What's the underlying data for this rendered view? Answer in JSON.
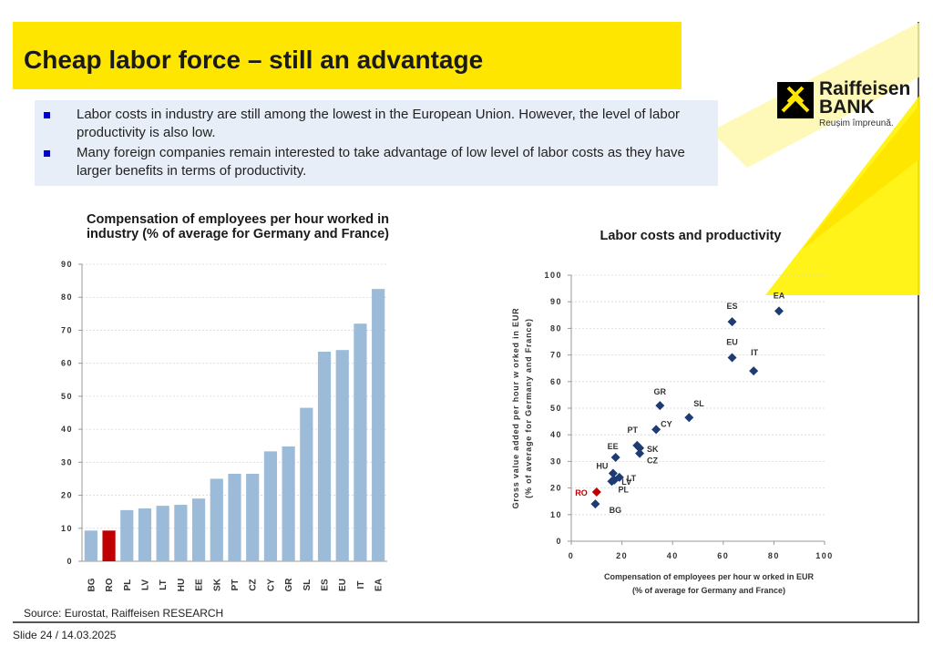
{
  "slide": {
    "title": "Cheap labor force – still an advantage",
    "bullets": [
      "Labor costs in industry are still among the lowest in the European Union. However, the level of labor productivity is also low.",
      "Many foreign companies remain interested to take advantage of low level of labor costs as they have larger benefits in terms of productivity."
    ],
    "source": "Source:  Eurostat, Raiffeisen RESEARCH",
    "slide_number": "Slide 24 / 14.03.2025",
    "logo": {
      "brand": "Raiffeisen BANK",
      "word1": "Raiffeisen",
      "word2": "BANK",
      "tagline": "Reușim împreună."
    },
    "colors": {
      "accent_yellow": "#ffe600",
      "bar_blue": "#9bbbd9",
      "bar_highlight": "#c00000",
      "diamond": "#1f3b73",
      "highlight_label": "#c00000"
    }
  },
  "chart_data": [
    {
      "type": "bar",
      "title": "Compensation of employees per hour worked in industry (% of average for Germany and France)",
      "categories": [
        "BG",
        "RO",
        "PL",
        "LV",
        "LT",
        "HU",
        "EE",
        "SK",
        "PT",
        "CZ",
        "CY",
        "GR",
        "SL",
        "ES",
        "EU",
        "IT",
        "EA"
      ],
      "values": [
        9.3,
        9.3,
        15.5,
        16,
        16.8,
        17.1,
        19,
        25,
        26.5,
        26.5,
        33.3,
        34.8,
        46.5,
        63.5,
        64,
        72,
        82.5
      ],
      "highlight": "RO",
      "ylim": [
        0,
        90
      ],
      "yticks": [
        0,
        10,
        20,
        30,
        40,
        50,
        60,
        70,
        80,
        90
      ],
      "grid": true
    },
    {
      "type": "scatter",
      "title": "Labor costs and productivity",
      "xlabel": "Compensation of employees per hour w orked in EUR (% of average for Germany and France)",
      "xlabel_lines": [
        "Compensation of employees per hour w orked in EUR",
        "(% of average for Germany and France)"
      ],
      "ylabel": "Gross value added per hour w orked in EUR (% of average for Germany and France)",
      "ylabel_lines": [
        "Gross value added per hour w orked in EUR",
        "(% of average for Germany and France)"
      ],
      "xlim": [
        0,
        100
      ],
      "ylim": [
        0,
        100
      ],
      "xticks": [
        0,
        20,
        40,
        60,
        80,
        100
      ],
      "yticks": [
        0,
        10,
        20,
        30,
        40,
        50,
        60,
        70,
        80,
        90,
        100
      ],
      "grid": true,
      "points": [
        {
          "label": "BG",
          "x": 9.5,
          "y": 14,
          "highlight": false
        },
        {
          "label": "RO",
          "x": 10,
          "y": 18.5,
          "highlight": true
        },
        {
          "label": "PL",
          "x": 16,
          "y": 22.5,
          "highlight": false
        },
        {
          "label": "LV",
          "x": 17,
          "y": 23,
          "highlight": false
        },
        {
          "label": "LT",
          "x": 19,
          "y": 24,
          "highlight": false
        },
        {
          "label": "HU",
          "x": 16.5,
          "y": 25.5,
          "highlight": false
        },
        {
          "label": "EE",
          "x": 17.5,
          "y": 31.5,
          "highlight": false
        },
        {
          "label": "CZ",
          "x": 27,
          "y": 33,
          "highlight": false
        },
        {
          "label": "SK",
          "x": 27,
          "y": 35,
          "highlight": false
        },
        {
          "label": "PT",
          "x": 26,
          "y": 36,
          "highlight": false
        },
        {
          "label": "CY",
          "x": 33.5,
          "y": 42,
          "highlight": false
        },
        {
          "label": "SL",
          "x": 46.5,
          "y": 46.5,
          "highlight": false
        },
        {
          "label": "GR",
          "x": 35,
          "y": 51,
          "highlight": false
        },
        {
          "label": "IT",
          "x": 72,
          "y": 64,
          "highlight": false
        },
        {
          "label": "EU",
          "x": 63.5,
          "y": 69,
          "highlight": false
        },
        {
          "label": "ES",
          "x": 63.5,
          "y": 82.5,
          "highlight": false
        },
        {
          "label": "EA",
          "x": 82,
          "y": 86.5,
          "highlight": false
        }
      ]
    }
  ]
}
